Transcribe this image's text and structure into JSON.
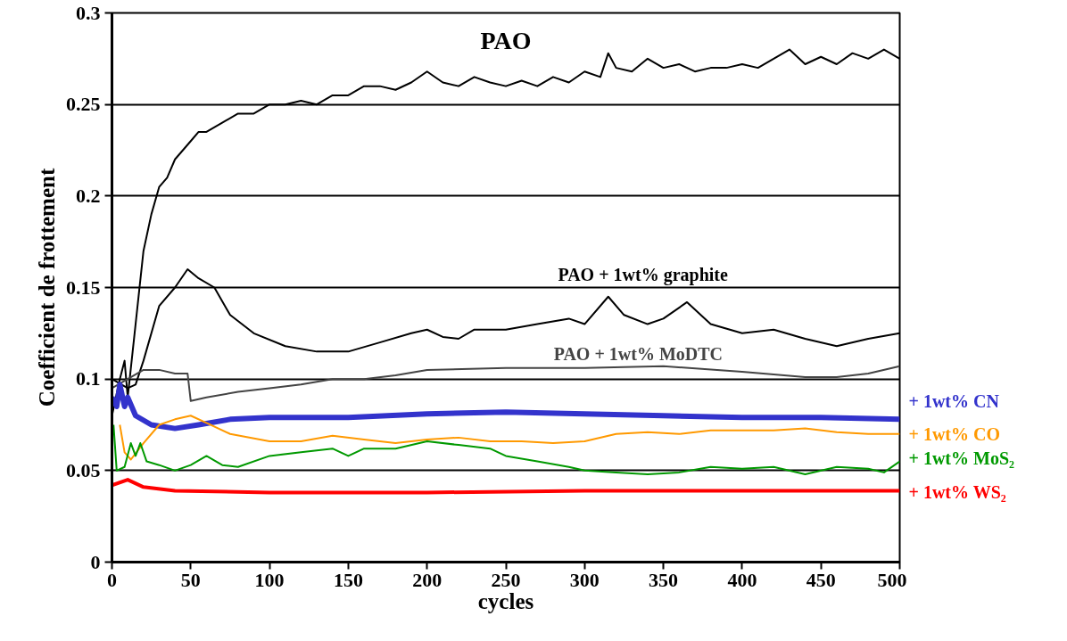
{
  "chart_data": {
    "type": "line",
    "xlabel": "cycles",
    "ylabel": "Coefficient de frottement",
    "xlim": [
      0,
      500
    ],
    "xticks": [
      0,
      50,
      100,
      150,
      200,
      250,
      300,
      350,
      400,
      450,
      500
    ],
    "ylim": [
      0,
      0.3
    ],
    "yticks": [
      0,
      0.05,
      0.1,
      0.15,
      0.2,
      0.25,
      0.3
    ],
    "grid": "y",
    "line_style": "solid",
    "marker": "none",
    "series": [
      {
        "name": "PAO",
        "color": "#000000",
        "x": [
          0,
          5,
          8,
          10,
          15,
          20,
          25,
          30,
          35,
          40,
          45,
          50,
          55,
          60,
          70,
          80,
          90,
          100,
          110,
          120,
          130,
          140,
          150,
          160,
          170,
          180,
          190,
          200,
          210,
          220,
          230,
          240,
          250,
          260,
          270,
          280,
          290,
          300,
          310,
          315,
          320,
          330,
          340,
          350,
          360,
          370,
          380,
          390,
          400,
          410,
          420,
          430,
          440,
          450,
          460,
          470,
          480,
          490,
          500
        ],
        "values": [
          0.08,
          0.1,
          0.11,
          0.09,
          0.13,
          0.17,
          0.19,
          0.205,
          0.21,
          0.22,
          0.225,
          0.23,
          0.235,
          0.235,
          0.24,
          0.245,
          0.245,
          0.25,
          0.25,
          0.252,
          0.25,
          0.255,
          0.255,
          0.26,
          0.26,
          0.258,
          0.262,
          0.268,
          0.262,
          0.26,
          0.265,
          0.262,
          0.26,
          0.263,
          0.26,
          0.265,
          0.262,
          0.268,
          0.265,
          0.278,
          0.27,
          0.268,
          0.275,
          0.27,
          0.272,
          0.268,
          0.27,
          0.27,
          0.272,
          0.27,
          0.275,
          0.28,
          0.272,
          0.276,
          0.272,
          0.278,
          0.275,
          0.28,
          0.275
        ]
      },
      {
        "name": "PAO + 1wt% graphite",
        "color": "#000000",
        "x": [
          0,
          10,
          15,
          20,
          30,
          40,
          48,
          55,
          65,
          75,
          90,
          110,
          130,
          150,
          170,
          190,
          200,
          210,
          220,
          230,
          250,
          270,
          290,
          300,
          315,
          325,
          340,
          350,
          365,
          380,
          400,
          420,
          440,
          460,
          480,
          500
        ],
        "values": [
          0.1,
          0.095,
          0.097,
          0.11,
          0.14,
          0.15,
          0.16,
          0.155,
          0.15,
          0.135,
          0.125,
          0.118,
          0.115,
          0.115,
          0.12,
          0.125,
          0.127,
          0.123,
          0.122,
          0.127,
          0.127,
          0.13,
          0.133,
          0.13,
          0.145,
          0.135,
          0.13,
          0.133,
          0.142,
          0.13,
          0.125,
          0.127,
          0.122,
          0.118,
          0.122,
          0.125
        ]
      },
      {
        "name": "PAO + 1wt% MoDTC",
        "color": "#444444",
        "x": [
          0,
          10,
          20,
          30,
          40,
          48,
          50,
          60,
          80,
          100,
          120,
          140,
          160,
          180,
          200,
          250,
          300,
          350,
          400,
          440,
          460,
          480,
          500
        ],
        "values": [
          0.095,
          0.1,
          0.105,
          0.105,
          0.103,
          0.103,
          0.088,
          0.09,
          0.093,
          0.095,
          0.097,
          0.1,
          0.1,
          0.102,
          0.105,
          0.106,
          0.106,
          0.107,
          0.104,
          0.101,
          0.101,
          0.103,
          0.107
        ]
      },
      {
        "name": "+ 1wt% CN",
        "color": "#3333cc",
        "x": [
          0,
          3,
          5,
          8,
          10,
          15,
          25,
          40,
          55,
          75,
          100,
          150,
          200,
          250,
          300,
          350,
          400,
          450,
          500
        ],
        "values": [
          0.09,
          0.085,
          0.097,
          0.085,
          0.09,
          0.08,
          0.075,
          0.073,
          0.075,
          0.078,
          0.079,
          0.079,
          0.081,
          0.082,
          0.081,
          0.08,
          0.079,
          0.079,
          0.078
        ]
      },
      {
        "name": "+ 1wt% CO",
        "color": "#ff9900",
        "x": [
          5,
          8,
          12,
          20,
          30,
          40,
          50,
          60,
          75,
          100,
          120,
          140,
          160,
          180,
          200,
          220,
          240,
          260,
          280,
          300,
          320,
          340,
          360,
          380,
          400,
          420,
          440,
          460,
          480,
          500
        ],
        "values": [
          0.075,
          0.06,
          0.056,
          0.065,
          0.075,
          0.078,
          0.08,
          0.076,
          0.07,
          0.066,
          0.066,
          0.069,
          0.067,
          0.065,
          0.067,
          0.068,
          0.066,
          0.066,
          0.065,
          0.066,
          0.07,
          0.071,
          0.07,
          0.072,
          0.072,
          0.072,
          0.073,
          0.071,
          0.07,
          0.07
        ]
      },
      {
        "name": "+ 1wt% MoS₂",
        "color": "#009900",
        "x": [
          1,
          3,
          8,
          12,
          15,
          18,
          22,
          30,
          40,
          50,
          60,
          70,
          80,
          100,
          120,
          140,
          150,
          160,
          180,
          200,
          220,
          240,
          250,
          270,
          290,
          300,
          320,
          340,
          360,
          380,
          400,
          420,
          440,
          460,
          480,
          490,
          500
        ],
        "values": [
          0.075,
          0.05,
          0.052,
          0.065,
          0.058,
          0.065,
          0.055,
          0.053,
          0.05,
          0.053,
          0.058,
          0.053,
          0.052,
          0.058,
          0.06,
          0.062,
          0.058,
          0.062,
          0.062,
          0.066,
          0.064,
          0.062,
          0.058,
          0.055,
          0.052,
          0.05,
          0.049,
          0.048,
          0.049,
          0.052,
          0.051,
          0.052,
          0.048,
          0.052,
          0.051,
          0.049,
          0.055
        ]
      },
      {
        "name": "+ 1wt% WS₂",
        "color": "#ff0000",
        "x": [
          0,
          10,
          20,
          40,
          100,
          200,
          300,
          400,
          500
        ],
        "values": [
          0.042,
          0.045,
          0.041,
          0.039,
          0.038,
          0.038,
          0.039,
          0.039,
          0.039
        ]
      }
    ]
  }
}
